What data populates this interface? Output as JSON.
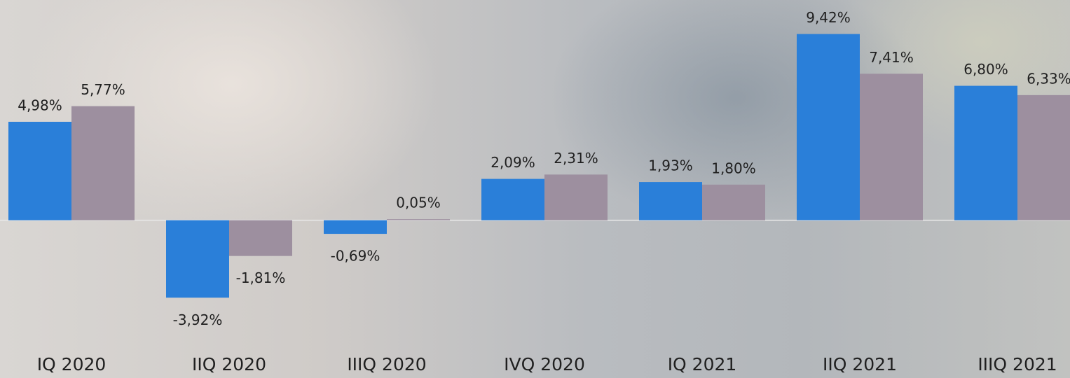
{
  "chart_data": {
    "type": "bar",
    "categories": [
      "IQ 2020",
      "IIQ 2020",
      "IIIQ 2020",
      "IVQ 2020",
      "IQ 2021",
      "IIQ 2021",
      "IIIQ 2021"
    ],
    "series": [
      {
        "color": "#2a7fd9",
        "values": [
          4.98,
          -3.92,
          -0.69,
          2.09,
          1.93,
          9.42,
          6.8
        ],
        "value_labels": [
          "4,98%",
          "-3,92%",
          "-0,69%",
          "2,09%",
          "1,93%",
          "9,42%",
          "6,80%"
        ]
      },
      {
        "color": "#9d8f9f",
        "values": [
          5.77,
          -1.81,
          0.05,
          2.31,
          1.8,
          7.41,
          6.33
        ],
        "value_labels": [
          "5,77%",
          "-1,81%",
          "0,05%",
          "2,31%",
          "1,80%",
          "7,41%",
          "6,33%"
        ]
      }
    ],
    "ylim": [
      -6,
      11
    ]
  }
}
